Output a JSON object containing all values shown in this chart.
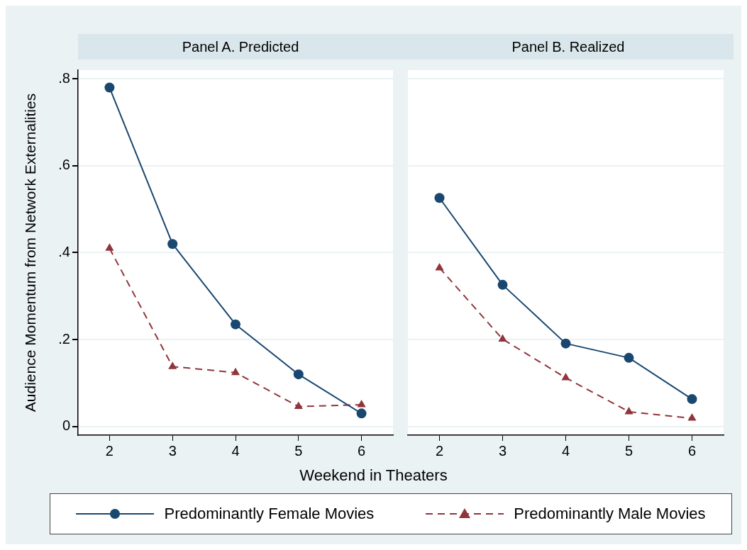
{
  "chart_data": [
    {
      "type": "line",
      "title": "Panel A. Predicted",
      "xlabel": "Weekend in Theaters",
      "ylabel": "Audience Momentum from Network Externalities",
      "x": [
        2,
        3,
        4,
        5,
        6
      ],
      "xlim": [
        1.5,
        6.5
      ],
      "xticks": [
        2,
        3,
        4,
        5,
        6
      ],
      "ylim": [
        -0.02,
        0.82
      ],
      "yticks": [
        {
          "value": 0,
          "label": "0"
        },
        {
          "value": 0.2,
          "label": ".2"
        },
        {
          "value": 0.4,
          "label": ".4"
        },
        {
          "value": 0.6,
          "label": ".6"
        },
        {
          "value": 0.8,
          "label": ".8"
        }
      ],
      "grid": "y",
      "legend": "bottom",
      "series": [
        {
          "name": "Predominantly Female Movies",
          "color": "#1a476f",
          "marker": "circle",
          "line_style": "solid",
          "values": [
            0.78,
            0.42,
            0.235,
            0.12,
            0.03
          ]
        },
        {
          "name": "Predominantly Male Movies",
          "color": "#90353b",
          "marker": "triangle",
          "line_style": "dashed",
          "values": [
            0.41,
            0.138,
            0.124,
            0.046,
            0.05
          ]
        }
      ]
    },
    {
      "type": "line",
      "title": "Panel B. Realized",
      "x": [
        2,
        3,
        4,
        5,
        6
      ],
      "xlim": [
        1.5,
        6.5
      ],
      "xticks": [
        2,
        3,
        4,
        5,
        6
      ],
      "ylim": [
        -0.02,
        0.82
      ],
      "yticks": [
        0,
        0.2,
        0.4,
        0.6,
        0.8
      ],
      "grid": "y",
      "tick_labels": "x",
      "series": [
        {
          "color": "#1a476f",
          "marker": "circle",
          "line_style": "solid",
          "values": [
            0.526,
            0.326,
            0.191,
            0.158,
            0.063
          ]
        },
        {
          "color": "#90353b",
          "marker": "triangle",
          "line_style": "dashed",
          "values": [
            0.365,
            0.201,
            0.112,
            0.034,
            0.019
          ]
        }
      ]
    }
  ]
}
